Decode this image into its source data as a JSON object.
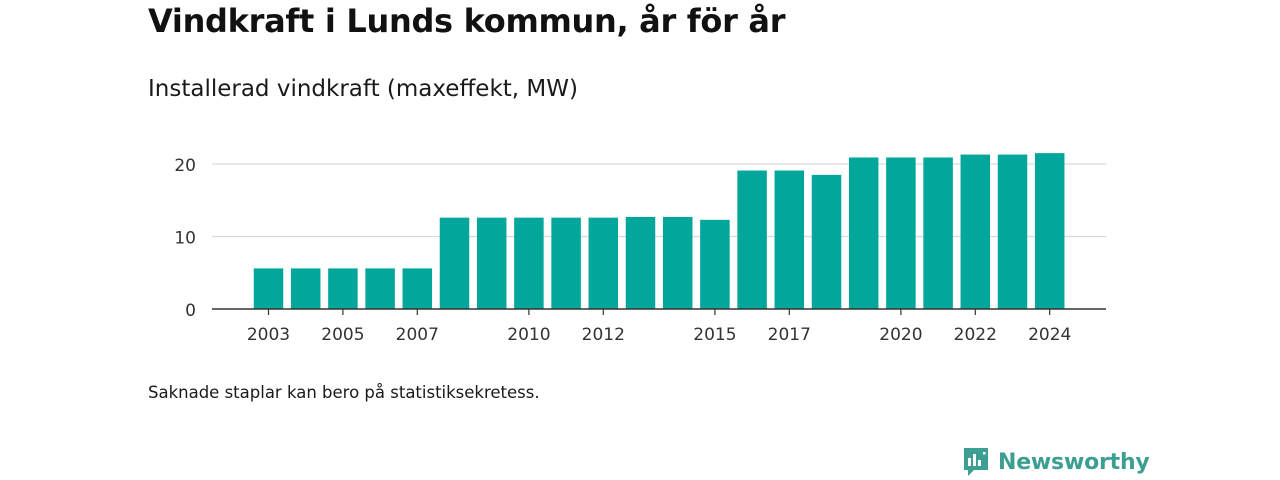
{
  "header": {
    "title": "Vindkraft i Lunds kommun, år för år",
    "subtitle": "Installerad vindkraft (maxeffekt, MW)"
  },
  "footer": {
    "note": "Saknade staplar kan bero på statistiksekretess.",
    "brand": "Newsworthy"
  },
  "colors": {
    "bar": "#02a69a",
    "grid": "#d9d9d9",
    "axis": "#333333",
    "brand": "#3d9e92"
  },
  "chart_data": {
    "type": "bar",
    "title": "Vindkraft i Lunds kommun, år för år",
    "subtitle": "Installerad vindkraft (maxeffekt, MW)",
    "xlabel": "",
    "ylabel": "",
    "categories": [
      "2003",
      "2004",
      "2005",
      "2006",
      "2007",
      "2008",
      "2009",
      "2010",
      "2011",
      "2012",
      "2013",
      "2014",
      "2015",
      "2016",
      "2017",
      "2018",
      "2019",
      "2020",
      "2021",
      "2022",
      "2023",
      "2024"
    ],
    "values": [
      5.6,
      5.6,
      5.6,
      5.6,
      5.6,
      12.6,
      12.6,
      12.6,
      12.6,
      12.6,
      12.7,
      12.7,
      12.3,
      19.1,
      19.1,
      18.5,
      20.9,
      20.9,
      20.9,
      21.3,
      21.3,
      21.5
    ],
    "x_tick_labels": [
      "2003",
      "2005",
      "2007",
      "2010",
      "2012",
      "2015",
      "2017",
      "2020",
      "2022",
      "2024"
    ],
    "y_ticks": [
      0,
      10,
      20
    ],
    "ylim": [
      0,
      22
    ],
    "grid": true,
    "legend": "none"
  }
}
